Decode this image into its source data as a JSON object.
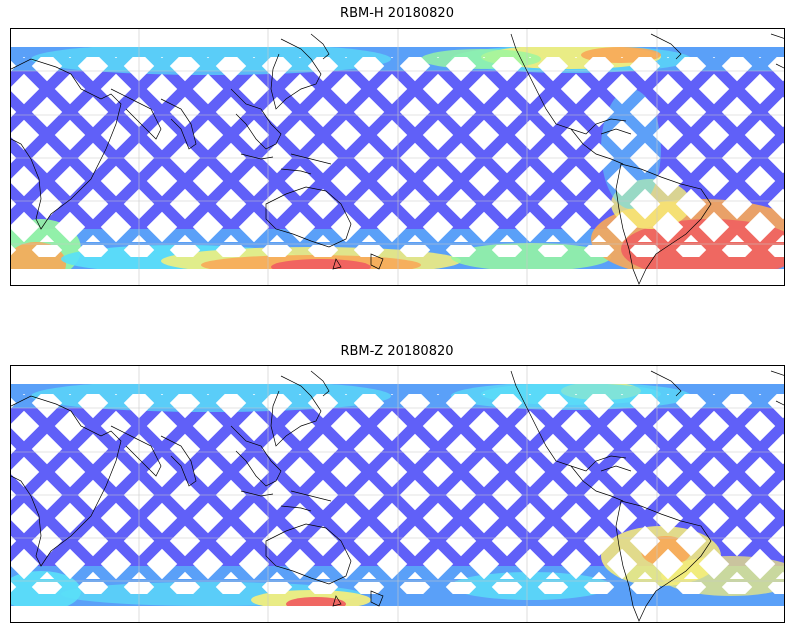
{
  "panels": [
    {
      "title": "RBM-H 20180820",
      "high_zones": [
        "south-pacific",
        "south-atlantic",
        "north-atlantic"
      ]
    },
    {
      "title": "RBM-Z 20180820",
      "high_zones": [
        "south-pacific-small",
        "south-atlantic-mild"
      ]
    }
  ],
  "colors": {
    "low": "#6060f8",
    "lowmid": "#5aa0f8",
    "mid": "#5ae0f8",
    "midhigh": "#98f8a0",
    "high_yellow": "#f8f078",
    "high_orange": "#f8a858",
    "high_red": "#f06060",
    "coast": "#000000",
    "grid": "#c8c8c8"
  }
}
